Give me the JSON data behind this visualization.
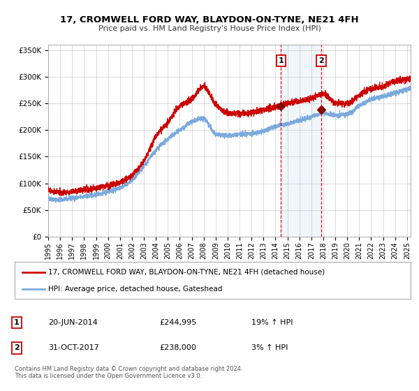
{
  "title": "17, CROMWELL FORD WAY, BLAYDON-ON-TYNE, NE21 4FH",
  "subtitle": "Price paid vs. HM Land Registry's House Price Index (HPI)",
  "title_fontsize": 9.5,
  "subtitle_fontsize": 8,
  "ylim": [
    0,
    360000
  ],
  "xlim_start": 1995.0,
  "xlim_end": 2025.3,
  "yticks": [
    0,
    50000,
    100000,
    150000,
    200000,
    250000,
    300000,
    350000
  ],
  "ytick_labels": [
    "£0",
    "£50K",
    "£100K",
    "£150K",
    "£200K",
    "£250K",
    "£300K",
    "£350K"
  ],
  "xticks": [
    1995,
    1996,
    1997,
    1998,
    1999,
    2000,
    2001,
    2002,
    2003,
    2004,
    2005,
    2006,
    2007,
    2008,
    2009,
    2010,
    2011,
    2012,
    2013,
    2014,
    2015,
    2016,
    2017,
    2018,
    2019,
    2020,
    2021,
    2022,
    2023,
    2024,
    2025
  ],
  "red_line_label": "17, CROMWELL FORD WAY, BLAYDON-ON-TYNE, NE21 4FH (detached house)",
  "blue_line_label": "HPI: Average price, detached house, Gateshead",
  "red_color": "#cc0000",
  "blue_color": "#7aaadd",
  "sale1_date": 2014.47,
  "sale1_price": 244995,
  "sale1_label": "1",
  "sale2_date": 2017.83,
  "sale2_price": 238000,
  "sale2_label": "2",
  "sale1_text": "20-JUN-2014",
  "sale1_amount": "£244,995",
  "sale1_hpi": "19% ↑ HPI",
  "sale2_text": "31-OCT-2017",
  "sale2_amount": "£238,000",
  "sale2_hpi": "3% ↑ HPI",
  "shaded_alpha": 0.07,
  "background_color": "#ffffff",
  "grid_color": "#cccccc",
  "footer_text1": "Contains HM Land Registry data © Crown copyright and database right 2024.",
  "footer_text2": "This data is licensed under the Open Government Licence v3.0."
}
